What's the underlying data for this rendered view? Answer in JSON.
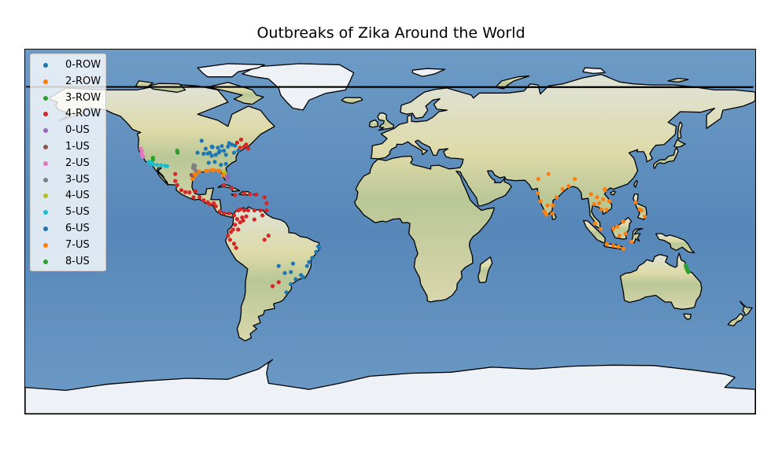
{
  "title": "Outbreaks of Zika Around the World",
  "map": {
    "type": "world-map-scatter",
    "projection": "equirectangular",
    "background": "shaded-relief"
  },
  "colors": {
    "ocean": "#5d8fbf",
    "land": "#d8d8a6",
    "land_green": "#a9c38e",
    "ice": "#eef2f6",
    "coast": "#000000"
  },
  "legend": {
    "placement": "upper-left",
    "items": [
      {
        "label": "0-ROW",
        "color": "#1f77b4"
      },
      {
        "label": "2-ROW",
        "color": "#ff7f0e"
      },
      {
        "label": "3-ROW",
        "color": "#2ca02c"
      },
      {
        "label": "4-ROW",
        "color": "#d62728"
      },
      {
        "label": "0-US",
        "color": "#9467bd"
      },
      {
        "label": "1-US",
        "color": "#8c564b"
      },
      {
        "label": "2-US",
        "color": "#e377c2"
      },
      {
        "label": "3-US",
        "color": "#7f7f7f"
      },
      {
        "label": "4-US",
        "color": "#bcbd22"
      },
      {
        "label": "5-US",
        "color": "#17becf"
      },
      {
        "label": "6-US",
        "color": "#1f77b4"
      },
      {
        "label": "7-US",
        "color": "#ff7f0e"
      },
      {
        "label": "8-US",
        "color": "#2ca02c"
      }
    ]
  },
  "chart_data": {
    "type": "scatter",
    "title": "Outbreaks of Zika Around the World",
    "xlim": [
      -180,
      180
    ],
    "ylim": [
      -90,
      90
    ],
    "series": [
      {
        "name": "0-ROW",
        "color": "#1f77b4",
        "points": [
          [
            -79.4,
            43.7
          ],
          [
            -78,
            43
          ],
          [
            -76.5,
            42.5
          ],
          [
            -75,
            40
          ],
          [
            -83,
            42.3
          ],
          [
            -80,
            42
          ],
          [
            -85,
            41.5
          ],
          [
            -82,
            40
          ],
          [
            -88,
            42
          ],
          [
            -77,
            39
          ],
          [
            -84,
            39.8
          ],
          [
            -81,
            38
          ],
          [
            -86,
            38
          ],
          [
            -89.5,
            34
          ],
          [
            -86.5,
            34.5
          ],
          [
            -83.5,
            33
          ],
          [
            -81,
            33.5
          ],
          [
            -35,
            -8
          ],
          [
            -35.5,
            -7.3
          ],
          [
            -36.5,
            -10
          ],
          [
            -38.5,
            -13
          ],
          [
            -40,
            -15
          ],
          [
            -41,
            -17
          ],
          [
            -47.9,
            -15.8
          ],
          [
            -49,
            -20
          ],
          [
            -52,
            -20.5
          ],
          [
            -43,
            -22.5
          ],
          [
            -44,
            -21.5
          ],
          [
            -46.6,
            -23.5
          ],
          [
            -49,
            -26
          ],
          [
            -51.2,
            -30
          ],
          [
            -55,
            -17
          ]
        ]
      },
      {
        "name": "2-ROW",
        "color": "#ff7f0e",
        "points": [
          [
            73,
            26
          ],
          [
            78,
            28.5
          ],
          [
            74,
            15
          ],
          [
            72.8,
            19
          ],
          [
            77.6,
            13
          ],
          [
            80.2,
            13
          ],
          [
            76,
            10
          ],
          [
            77,
            8.5
          ],
          [
            80,
            9
          ],
          [
            82,
            17
          ],
          [
            85,
            21
          ],
          [
            88,
            22.5
          ],
          [
            91,
            26
          ],
          [
            100.5,
            13.7
          ],
          [
            99,
            18.5
          ],
          [
            102,
            17
          ],
          [
            103,
            14
          ],
          [
            105,
            16
          ],
          [
            104.2,
            11
          ],
          [
            106.7,
            10.8
          ],
          [
            108,
            15
          ],
          [
            106,
            20.5
          ],
          [
            105.8,
            21
          ],
          [
            101,
            4
          ],
          [
            103.8,
            1.3
          ],
          [
            110,
            1.5
          ],
          [
            112,
            2.5
          ],
          [
            115,
            4.9
          ],
          [
            116,
            -1
          ],
          [
            113,
            -2
          ],
          [
            110,
            -7
          ],
          [
            112.5,
            -7.5
          ],
          [
            115,
            -8.5
          ],
          [
            106.8,
            -6.2
          ],
          [
            119,
            -5
          ],
          [
            121,
            14.5
          ],
          [
            123,
            11
          ],
          [
            124,
            10.5
          ],
          [
            125.5,
            7.5
          ],
          [
            -97,
            27.5
          ],
          [
            -96,
            28
          ],
          [
            -97.5,
            26
          ],
          [
            -95,
            29.5
          ],
          [
            -90,
            30
          ],
          [
            -87,
            30.5
          ],
          [
            -84,
            30
          ],
          [
            -82,
            29
          ],
          [
            -80.5,
            27
          ],
          [
            -80.2,
            25.8
          ]
        ]
      },
      {
        "name": "3-ROW",
        "color": "#2ca02c",
        "points": [
          [
            -117,
            36.5
          ],
          [
            -117,
            36
          ],
          [
            -117,
            35.5
          ],
          [
            146,
            -18
          ],
          [
            146.5,
            -19
          ],
          [
            147,
            -20
          ],
          [
            145.7,
            -16.9
          ]
        ]
      },
      {
        "name": "4-ROW",
        "color": "#d62728",
        "points": [
          [
            -70,
            41
          ],
          [
            -72,
            42
          ],
          [
            -71,
            43
          ],
          [
            -73.5,
            45.5
          ],
          [
            -75.5,
            44
          ],
          [
            -74,
            41.5
          ],
          [
            -106,
            28.5
          ],
          [
            -106,
            25
          ],
          [
            -105,
            23
          ],
          [
            -103,
            20.5
          ],
          [
            -101,
            19.5
          ],
          [
            -99,
            19.4
          ],
          [
            -97,
            17
          ],
          [
            -96,
            20
          ],
          [
            -94,
            17
          ],
          [
            -92,
            15.5
          ],
          [
            -90,
            14.5
          ],
          [
            -89,
            13.5
          ],
          [
            -87,
            14
          ],
          [
            -86,
            12.5
          ],
          [
            -84,
            10
          ],
          [
            -82,
            9
          ],
          [
            -79.5,
            9
          ],
          [
            -77,
            8
          ],
          [
            -75,
            10.5
          ],
          [
            -74,
            11
          ],
          [
            -72,
            10.5
          ],
          [
            -70,
            10.5
          ],
          [
            -67,
            10.5
          ],
          [
            -64,
            10.5
          ],
          [
            -61,
            10.5
          ],
          [
            -66,
            18.3
          ],
          [
            -69,
            18.5
          ],
          [
            -72,
            19
          ],
          [
            -76.5,
            18
          ],
          [
            -82,
            23
          ],
          [
            -78,
            21.5
          ],
          [
            -62,
            17
          ],
          [
            -61,
            14
          ],
          [
            -74,
            4.6
          ],
          [
            -75.5,
            6.2
          ],
          [
            -76.5,
            3.4
          ],
          [
            -73,
            7
          ],
          [
            -71,
            7.5
          ],
          [
            -67,
            6
          ],
          [
            -63,
            8
          ],
          [
            -72.5,
            5.5
          ],
          [
            -78.5,
            -0.2
          ],
          [
            -80,
            -2
          ],
          [
            -79,
            -4
          ],
          [
            -77,
            -6
          ],
          [
            -76,
            -8
          ],
          [
            -75,
            1
          ],
          [
            -77.5,
            1
          ],
          [
            -55,
            -25
          ],
          [
            -58,
            -27
          ],
          [
            -60,
            -2
          ],
          [
            -62,
            -4
          ]
        ]
      },
      {
        "name": "0-US",
        "color": "#9467bd",
        "points": [
          [
            -80.5,
            27.5
          ],
          [
            -80.4,
            27
          ],
          [
            -80.3,
            26.5
          ],
          [
            -80.2,
            26
          ],
          [
            -80.1,
            25.8
          ],
          [
            -80.6,
            27.8
          ]
        ]
      },
      {
        "name": "1-US",
        "color": "#8c564b",
        "points": [
          [
            -98,
            28
          ],
          [
            -97.5,
            27.8
          ]
        ]
      },
      {
        "name": "2-US",
        "color": "#e377c2",
        "points": [
          [
            -122.5,
            40
          ],
          [
            -122.4,
            38
          ],
          [
            -122.2,
            37.5
          ],
          [
            -121.8,
            37
          ],
          [
            -122.6,
            39
          ],
          [
            -123,
            41
          ]
        ]
      },
      {
        "name": "3-US",
        "color": "#7f7f7f",
        "points": [
          [
            -97,
            32.8
          ],
          [
            -96.8,
            32
          ],
          [
            -96.5,
            31
          ],
          [
            -96,
            30.2
          ],
          [
            -95.8,
            29.8
          ],
          [
            -97.2,
            31.5
          ],
          [
            -96.3,
            32.5
          ]
        ]
      },
      {
        "name": "4-US",
        "color": "#bcbd22",
        "points": [
          [
            -82,
            29.3
          ],
          [
            -81.5,
            29
          ],
          [
            -81.7,
            28.7
          ]
        ]
      },
      {
        "name": "5-US",
        "color": "#17becf",
        "points": [
          [
            -118.2,
            34.1
          ],
          [
            -117.5,
            33.8
          ],
          [
            -117,
            33.3
          ],
          [
            -115,
            33
          ],
          [
            -113,
            32.8
          ],
          [
            -111,
            32.5
          ],
          [
            -119,
            34.5
          ],
          [
            -110,
            32.3
          ]
        ]
      },
      {
        "name": "6-US",
        "color": "#1f77b4",
        "points": [
          [
            -91,
            41
          ],
          [
            -89,
            39
          ],
          [
            -87.6,
            41.8
          ],
          [
            -90,
            38.6
          ],
          [
            -84.5,
            39.1
          ],
          [
            -88,
            37.5
          ],
          [
            -92,
            38.5
          ],
          [
            -93,
            44.9
          ],
          [
            -95,
            39
          ]
        ]
      },
      {
        "name": "7-US",
        "color": "#ff7f0e",
        "points": [
          [
            -94,
            29.8
          ],
          [
            -91,
            30
          ],
          [
            -88,
            30.5
          ],
          [
            -85,
            30.2
          ],
          [
            -82.5,
            28
          ],
          [
            -96.5,
            28.5
          ]
        ]
      },
      {
        "name": "8-US",
        "color": "#2ca02c",
        "points": [
          [
            -105,
            40
          ],
          [
            -105,
            39.5
          ],
          [
            -104.8,
            39
          ]
        ]
      }
    ]
  }
}
